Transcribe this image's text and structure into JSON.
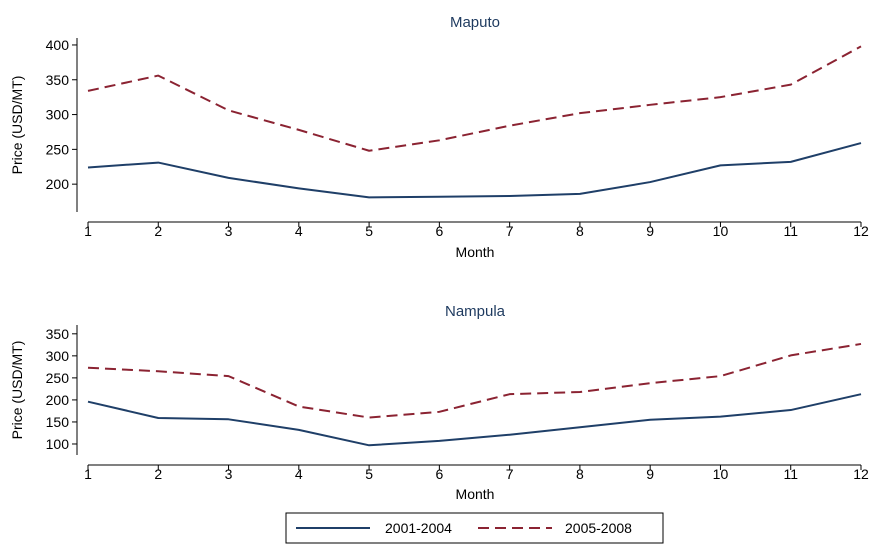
{
  "chart_data": [
    {
      "type": "line",
      "title": "Maputo",
      "xlabel": "Month",
      "ylabel": "Price (USD/MT)",
      "x": [
        1,
        2,
        3,
        4,
        5,
        6,
        7,
        8,
        9,
        10,
        11,
        12
      ],
      "xlim": [
        1,
        12
      ],
      "ylim": [
        160,
        410
      ],
      "yticks": [
        200,
        250,
        300,
        350,
        400
      ],
      "series": [
        {
          "name": "2001-2004",
          "color": "#1f3f68",
          "style": "solid",
          "values": [
            224,
            231,
            209,
            194,
            181,
            182,
            183,
            186,
            203,
            227,
            232,
            259
          ]
        },
        {
          "name": "2005-2008",
          "color": "#8b2332",
          "style": "dashed",
          "values": [
            334,
            356,
            306,
            278,
            248,
            263,
            284,
            302,
            314,
            325,
            343,
            398
          ]
        }
      ],
      "grid": false
    },
    {
      "type": "line",
      "title": "Nampula",
      "xlabel": "Month",
      "ylabel": "Price (USD/MT)",
      "x": [
        1,
        2,
        3,
        4,
        5,
        6,
        7,
        8,
        9,
        10,
        11,
        12
      ],
      "xlim": [
        1,
        12
      ],
      "ylim": [
        75,
        370
      ],
      "yticks": [
        100,
        150,
        200,
        250,
        300,
        350
      ],
      "series": [
        {
          "name": "2001-2004",
          "color": "#1f3f68",
          "style": "solid",
          "values": [
            196,
            159,
            156,
            132,
            97,
            107,
            121,
            138,
            155,
            162,
            177,
            213
          ]
        },
        {
          "name": "2005-2008",
          "color": "#8b2332",
          "style": "dashed",
          "values": [
            273,
            265,
            254,
            185,
            160,
            173,
            213,
            218,
            238,
            254,
            301,
            327
          ]
        }
      ],
      "grid": false
    }
  ],
  "legend": {
    "position": "bottom-center",
    "items": [
      {
        "label": "2001-2004",
        "color": "#1f3f68",
        "style": "solid"
      },
      {
        "label": "2005-2008",
        "color": "#8b2332",
        "style": "dashed"
      }
    ]
  }
}
